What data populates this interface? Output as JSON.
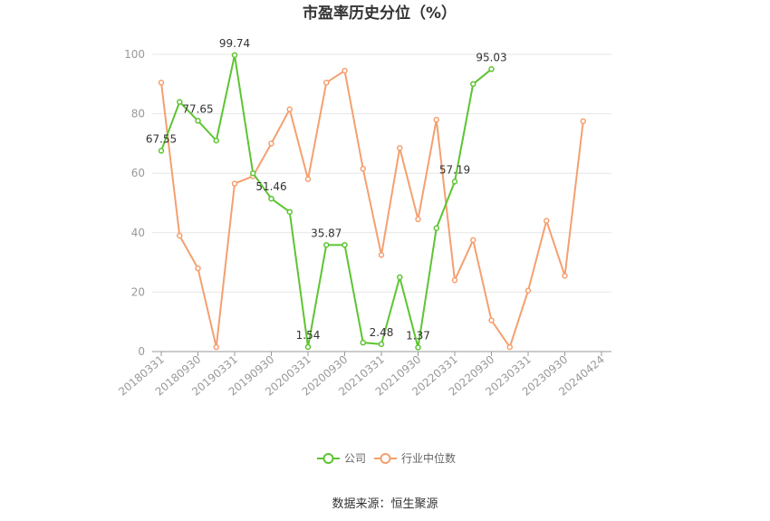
{
  "chart_data": {
    "type": "line",
    "title": "市盈率历史分位（%）",
    "xlabel": "",
    "ylabel": "",
    "ylim": [
      0,
      100
    ],
    "yticks": [
      0,
      20,
      40,
      60,
      80,
      100
    ],
    "grid": true,
    "legend_position": "bottom",
    "tick_labels": [
      "20180331",
      "20180930",
      "20190331",
      "20190930",
      "20200331",
      "20200930",
      "20210331",
      "20210930",
      "20220331",
      "20220930",
      "20230331",
      "20230930",
      "20240424"
    ],
    "series": [
      {
        "name": "公司",
        "color": "#5ec432",
        "values": [
          67.55,
          84.0,
          77.65,
          71.0,
          99.74,
          60.0,
          51.46,
          47.0,
          1.54,
          35.87,
          35.87,
          3.0,
          2.48,
          25.0,
          1.37,
          41.5,
          57.19,
          90.0,
          95.03,
          null,
          null,
          null,
          null,
          null,
          null
        ],
        "labels": {
          "0": "67.55",
          "2": "77.65",
          "4": "99.74",
          "6": "51.46",
          "8": "1.54",
          "9": "35.87",
          "12": "2.48",
          "14": "1.37",
          "16": "57.19",
          "18": "95.03"
        }
      },
      {
        "name": "行业中位数",
        "color": "#f4a070",
        "values": [
          90.5,
          39.0,
          28.0,
          1.5,
          56.5,
          59.0,
          70.0,
          81.5,
          58.0,
          90.5,
          94.5,
          61.5,
          32.5,
          68.5,
          44.5,
          78.0,
          24.0,
          37.5,
          10.5,
          1.5,
          20.5,
          44.0,
          25.5,
          77.5,
          null
        ]
      }
    ]
  },
  "footer": {
    "source": "数据来源：恒生聚源"
  }
}
